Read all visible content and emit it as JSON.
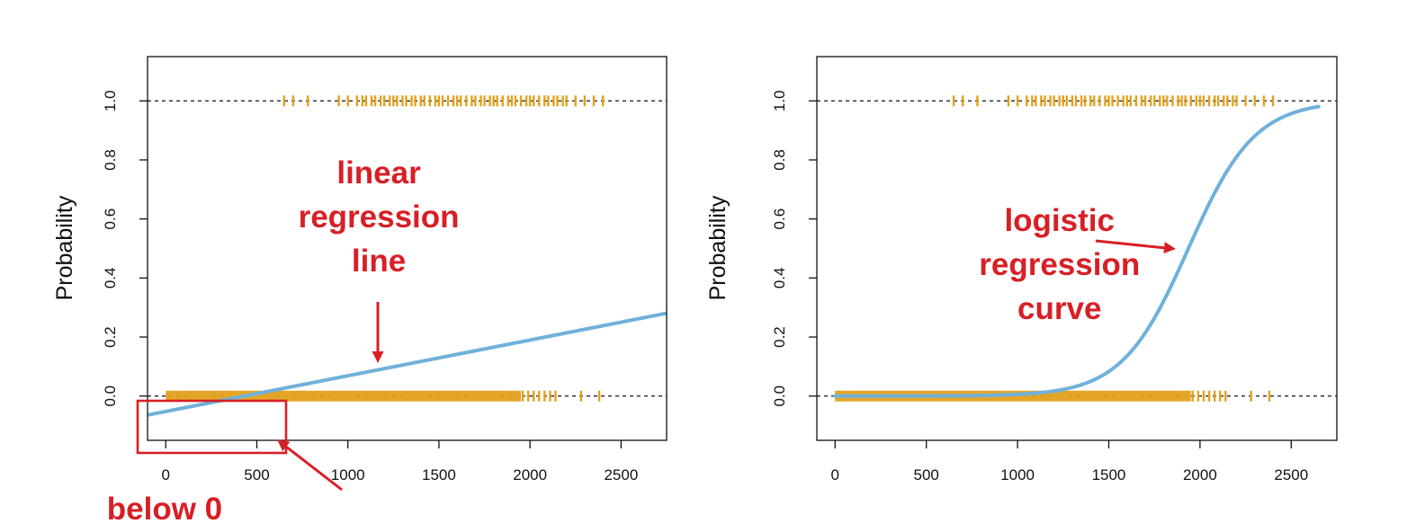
{
  "chart_data": [
    {
      "type": "line",
      "ylabel": "Probability",
      "xlim": [
        -100,
        2750
      ],
      "ylim": [
        -0.15,
        1.15
      ],
      "xticks": [
        "0",
        "500",
        "1000",
        "1500",
        "2000",
        "2500"
      ],
      "yticks": [
        "0.0",
        "0.2",
        "0.4",
        "0.6",
        "0.8",
        "1.0"
      ],
      "reference_lines_y": [
        0,
        1
      ],
      "rug_default_1": [
        650,
        700,
        780,
        950,
        1000,
        1050,
        1080,
        1100,
        1130,
        1150,
        1180,
        1200,
        1230,
        1250,
        1270,
        1300,
        1320,
        1350,
        1370,
        1400,
        1420,
        1450,
        1480,
        1500,
        1520,
        1550,
        1580,
        1600,
        1620,
        1650,
        1680,
        1700,
        1730,
        1750,
        1780,
        1800,
        1820,
        1850,
        1880,
        1900,
        1920,
        1950,
        1980,
        2000,
        2020,
        2050,
        2080,
        2100,
        2130,
        2150,
        2180,
        2200,
        2250,
        2300,
        2350,
        2400
      ],
      "rug_default_0_band": [
        0,
        1950
      ],
      "rug_default_0_sparse": [
        1960,
        1990,
        2020,
        2050,
        2080,
        2110,
        2140,
        2280,
        2380
      ],
      "fit": {
        "kind": "linear",
        "intercept": -0.0522,
        "slope": 0.000121,
        "from": -100,
        "to": 2750
      },
      "annotations": [
        {
          "lines": [
            "linear",
            "regression",
            "line"
          ],
          "x": 1150,
          "y": 0.72
        },
        {
          "lines": [
            "below 0"
          ],
          "x": 700,
          "y": -0.36
        }
      ],
      "colors": {
        "fit": "#6FB1DB",
        "rug": "#E3A11C",
        "annot": "#D81F26"
      }
    },
    {
      "type": "line",
      "ylabel": "Probability",
      "xlim": [
        -100,
        2750
      ],
      "ylim": [
        -0.15,
        1.15
      ],
      "xticks": [
        "0",
        "500",
        "1000",
        "1500",
        "2000",
        "2500"
      ],
      "yticks": [
        "0.0",
        "0.2",
        "0.4",
        "0.6",
        "0.8",
        "1.0"
      ],
      "reference_lines_y": [
        0,
        1
      ],
      "rug_default_1": [
        650,
        700,
        780,
        950,
        1000,
        1050,
        1080,
        1100,
        1130,
        1150,
        1180,
        1200,
        1230,
        1250,
        1270,
        1300,
        1320,
        1350,
        1370,
        1400,
        1420,
        1450,
        1480,
        1500,
        1520,
        1550,
        1580,
        1600,
        1620,
        1650,
        1680,
        1700,
        1730,
        1750,
        1780,
        1800,
        1820,
        1850,
        1880,
        1900,
        1920,
        1950,
        1980,
        2000,
        2020,
        2050,
        2080,
        2100,
        2130,
        2150,
        2180,
        2200,
        2250,
        2300,
        2350,
        2400
      ],
      "rug_default_0_band": [
        0,
        1950
      ],
      "rug_default_0_sparse": [
        1960,
        1990,
        2020,
        2050,
        2080,
        2110,
        2140,
        2280,
        2380
      ],
      "fit": {
        "kind": "logistic",
        "b0": -10.65,
        "b1": 0.0055,
        "from": 0,
        "to": 2650
      },
      "annotations": [
        {
          "lines": [
            "logistic",
            "regression",
            "curve"
          ],
          "x": 1230,
          "y": 0.56
        }
      ],
      "colors": {
        "fit": "#6FB1DB",
        "rug": "#E3A11C",
        "annot": "#D81F26"
      }
    }
  ]
}
